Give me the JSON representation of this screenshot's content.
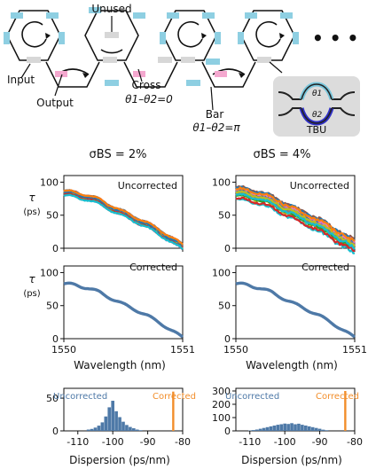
{
  "schematic": {
    "labels": {
      "unused": "Unused",
      "input": "Input",
      "output": "Output",
      "cross": "Cross",
      "cross_eq": "θ1–θ2=0",
      "bar": "Bar",
      "bar_eq": "θ1–θ2=π",
      "ellipsis": "• • •",
      "tbu": "TBU",
      "theta1": "θ1",
      "theta2": "θ2"
    },
    "colors": {
      "unit_blue": "#8ecfe2",
      "unit_pink": "#f4a8cf",
      "unit_gray": "#d7d7d7",
      "tbu_bg": "#dcdcdc",
      "tbu_arm_top": "#78c6dc",
      "tbu_arm_bot": "#3030c8"
    }
  },
  "columns": [
    {
      "header": "σBS = 2%"
    },
    {
      "header": "σBS = 4%"
    }
  ],
  "panel_labels": {
    "uncorrected": "Uncorrected",
    "corrected": "Corrected",
    "tau_label": "τ",
    "tau_unit": "(ps)"
  },
  "xlabel_wavelength": "Wavelength (nm)",
  "xlabel_dispersion": "Dispersion (ps/nm)",
  "chart_data": [
    {
      "type": "line",
      "id": "tau_uncorr_2",
      "x_range": [
        1550,
        1551
      ],
      "ylim": [
        0,
        110
      ],
      "yticks": [
        0,
        50,
        100
      ],
      "xticks": [
        1550,
        1551
      ],
      "spread": 4,
      "n_traces": 22,
      "base": {
        "x": [
          1550.0,
          1550.1,
          1550.2,
          1550.3,
          1550.4,
          1550.5,
          1550.6,
          1550.7,
          1550.8,
          1550.9,
          1551.0
        ],
        "y": [
          83,
          81,
          77,
          70,
          61,
          52,
          44,
          35,
          25,
          13,
          2
        ]
      }
    },
    {
      "type": "line",
      "id": "tau_uncorr_4",
      "x_range": [
        1550,
        1551
      ],
      "ylim": [
        0,
        110
      ],
      "yticks": [
        0,
        50,
        100
      ],
      "xticks": [
        1550,
        1551
      ],
      "spread": 10,
      "n_traces": 22,
      "base": {
        "x": [
          1550.0,
          1550.1,
          1550.2,
          1550.3,
          1550.4,
          1550.5,
          1550.6,
          1550.7,
          1550.8,
          1550.9,
          1551.0
        ],
        "y": [
          83,
          81,
          77,
          70,
          61,
          52,
          44,
          35,
          25,
          13,
          2
        ]
      }
    },
    {
      "type": "line",
      "id": "tau_corr_2",
      "x_range": [
        1550,
        1551
      ],
      "ylim": [
        0,
        110
      ],
      "yticks": [
        0,
        50,
        100
      ],
      "xticks": [
        1550,
        1551
      ],
      "series": [
        {
          "x": [
            1550.0,
            1550.1,
            1550.2,
            1550.3,
            1550.4,
            1550.5,
            1550.6,
            1550.7,
            1550.8,
            1550.9,
            1551.0
          ],
          "y": [
            83,
            81,
            77,
            70,
            61,
            52,
            44,
            35,
            25,
            13,
            2
          ]
        }
      ]
    },
    {
      "type": "line",
      "id": "tau_corr_4",
      "x_range": [
        1550,
        1551
      ],
      "ylim": [
        0,
        110
      ],
      "yticks": [
        0,
        50,
        100
      ],
      "xticks": [
        1550,
        1551
      ],
      "series": [
        {
          "x": [
            1550.0,
            1550.1,
            1550.2,
            1550.3,
            1550.4,
            1550.5,
            1550.6,
            1550.7,
            1550.8,
            1550.9,
            1551.0
          ],
          "y": [
            83,
            81,
            77,
            70,
            61,
            52,
            44,
            35,
            25,
            13,
            2
          ]
        }
      ]
    },
    {
      "type": "bar",
      "id": "hist_2",
      "xlim": [
        -114,
        -80
      ],
      "ylim": [
        0,
        65
      ],
      "xticks": [
        -110,
        -100,
        -90,
        -80
      ],
      "yticks": [
        0,
        50
      ],
      "uncorrected": {
        "bins": [
          -107,
          -106,
          -105,
          -104,
          -103,
          -102,
          -101,
          -100,
          -99,
          -98,
          -97,
          -96,
          -95,
          -94,
          -93,
          -92
        ],
        "counts": [
          2,
          3,
          5,
          8,
          13,
          22,
          36,
          46,
          30,
          21,
          14,
          9,
          6,
          4,
          2,
          1
        ]
      },
      "corrected": {
        "bin": -82.7,
        "count": 60
      }
    },
    {
      "type": "bar",
      "id": "hist_4",
      "xlim": [
        -114,
        -80
      ],
      "ylim": [
        0,
        320
      ],
      "xticks": [
        -110,
        -100,
        -90,
        -80
      ],
      "yticks": [
        0,
        100,
        200,
        300
      ],
      "uncorrected": {
        "bins": [
          -110,
          -109,
          -108,
          -107,
          -106,
          -105,
          -104,
          -103,
          -102,
          -101,
          -100,
          -99,
          -98,
          -97,
          -96,
          -95,
          -94,
          -93,
          -92,
          -91,
          -90,
          -89,
          -88
        ],
        "counts": [
          3,
          6,
          10,
          16,
          22,
          28,
          34,
          40,
          46,
          50,
          55,
          52,
          58,
          50,
          54,
          46,
          40,
          34,
          28,
          22,
          16,
          9,
          5
        ]
      },
      "corrected": {
        "bin": -82.7,
        "count": 300
      }
    }
  ],
  "series_colors": [
    "#1f77b4",
    "#ff7f0e",
    "#2ca02c",
    "#d62728",
    "#9467bd",
    "#8c564b",
    "#e377c2",
    "#7f7f7f",
    "#bcbd22",
    "#17becf"
  ],
  "corrected_color": "#4e79a7",
  "hist_uncorr_color": "#4e79a7",
  "hist_corr_color": "#f28e2b",
  "hist_labels": {
    "uncorrected": "Uncorrected",
    "corrected": "Corrected"
  }
}
